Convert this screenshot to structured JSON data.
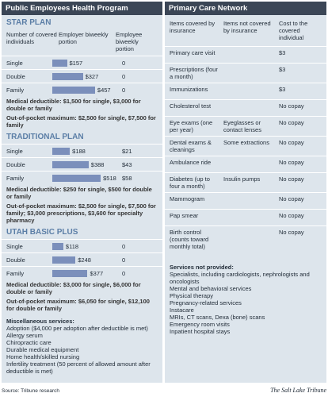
{
  "left": {
    "title": "Public Employees Health Program",
    "columns": [
      "Number of covered individuals",
      "Employer biweekly portion",
      "Employee biweekly portion"
    ],
    "plans": [
      {
        "name": "STAR PLAN",
        "rows": [
          {
            "size": "Single",
            "employer": 157,
            "employer_label": "$157",
            "employee": "0"
          },
          {
            "size": "Double",
            "employer": 327,
            "employer_label": "$327",
            "employee": "0"
          },
          {
            "size": "Family",
            "employer": 457,
            "employer_label": "$457",
            "employee": "0"
          }
        ],
        "notes": [
          {
            "label": "Medical deductible:",
            "text": "$1,500 for single, $3,000 for double or family"
          },
          {
            "label": "Out-of-pocket maximum:",
            "text": "$2,500 for single, $7,500 for family"
          }
        ]
      },
      {
        "name": "TRADITIONAL PLAN",
        "rows": [
          {
            "size": "Single",
            "employer": 188,
            "employer_label": "$188",
            "employee": "$21"
          },
          {
            "size": "Double",
            "employer": 388,
            "employer_label": "$388",
            "employee": "$43"
          },
          {
            "size": "Family",
            "employer": 518,
            "employer_label": "$518",
            "employee": "$58"
          }
        ],
        "notes": [
          {
            "label": "Medical deductible:",
            "text": "$250 for single, $500 for double or family"
          },
          {
            "label": "Out-of-pocket maximum:",
            "text": "$2,500 for single, $7,500 for family; $3,000 prescriptions, $3,600 for specialty pharmacy"
          }
        ]
      },
      {
        "name": "UTAH BASIC PLUS",
        "rows": [
          {
            "size": "Single",
            "employer": 118,
            "employer_label": "$118",
            "employee": "0"
          },
          {
            "size": "Double",
            "employer": 248,
            "employer_label": "$248",
            "employee": "0"
          },
          {
            "size": "Family",
            "employer": 377,
            "employer_label": "$377",
            "employee": "0"
          }
        ],
        "notes": [
          {
            "label": "Medical deductible:",
            "text": "$3,000 for single, $6,000 for double or family"
          },
          {
            "label": "Out-of-pocket maximum:",
            "text": "$6,050 for single, $12,100 for double or family"
          }
        ]
      }
    ],
    "misc": {
      "title": "Miscellaneous services:",
      "items": [
        "Adoption ($4,000 per adoption after deductible is met)",
        "Allergy serum",
        "Chiropractic care",
        "Durable medical equipment",
        "Home health/skilled nursing",
        "Infertility treatment (50 percent of allowed amount after deductible is met)"
      ]
    }
  },
  "right": {
    "title": "Primary Care Network",
    "columns": [
      "Items covered by insurance",
      "Items not covered by insurance",
      "Cost to the covered individual"
    ],
    "rows": [
      {
        "covered": "Primary care visit",
        "cost": "$3"
      },
      {
        "covered": "Prescriptions (four a month)",
        "cost": "$3"
      },
      {
        "covered": "Immunizations",
        "cost": "$3"
      },
      {
        "covered": "Cholesterol test",
        "cost": "No copay"
      },
      {
        "covered": "Eye exams (one per year)",
        "not_covered": "Eyeglasses or contact lenses",
        "cost": "No copay"
      },
      {
        "covered": "Dental exams & cleanings",
        "not_covered": "Some extractions",
        "cost": "No copay"
      },
      {
        "covered": "Ambulance ride",
        "cost": "No copay"
      },
      {
        "covered": "Diabetes (up to four a month)",
        "not_covered": "Insulin pumps",
        "cost": "No copay"
      },
      {
        "covered": "Mammogram",
        "cost": "No copay"
      },
      {
        "covered": "Pap smear",
        "cost": "No copay"
      },
      {
        "covered": "Birth control (counts toward monthly total)",
        "cost": "No copay"
      }
    ],
    "not_provided": {
      "title": "Services not provided:",
      "items": [
        "Specialists, including cardiologists, nephrologists and oncologists",
        "Mental and behavioral services",
        "Physical therapy",
        "Pregnancy-related services",
        "Instacare",
        "MRIs, CT scans, Dexa (bone) scans",
        "Emergency room visits",
        "Inpatient hospital stays"
      ]
    }
  },
  "footer": {
    "source": "Source: Tribune research",
    "credit": "The Salt Lake Tribune"
  }
}
